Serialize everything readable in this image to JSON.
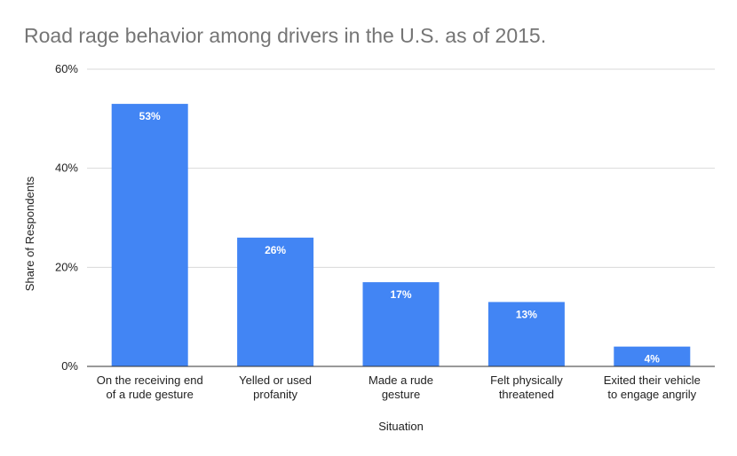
{
  "chart_data": {
    "type": "bar",
    "title": "Road rage behavior among drivers in the U.S. as of 2015.",
    "xlabel": "Situation",
    "ylabel": "Share of Respondents",
    "categories": [
      [
        "On the receiving end",
        "of a rude gesture"
      ],
      [
        "Yelled or used",
        "profanity"
      ],
      [
        "Made a rude",
        "gesture"
      ],
      [
        "Felt physically",
        "threatened"
      ],
      [
        "Exited their vehicle",
        "to engage angrily"
      ]
    ],
    "values": [
      53,
      26,
      17,
      13,
      4
    ],
    "data_labels": [
      "53%",
      "26%",
      "17%",
      "13%",
      "4%"
    ],
    "ylim": [
      0,
      60
    ],
    "yticks": [
      0,
      20,
      40,
      60
    ],
    "ytick_labels": [
      "0%",
      "20%",
      "40%",
      "60%"
    ],
    "grid": true,
    "bar_color": "#4285f4",
    "grid_color": "#d9d9d9",
    "axis_color": "#333333"
  }
}
